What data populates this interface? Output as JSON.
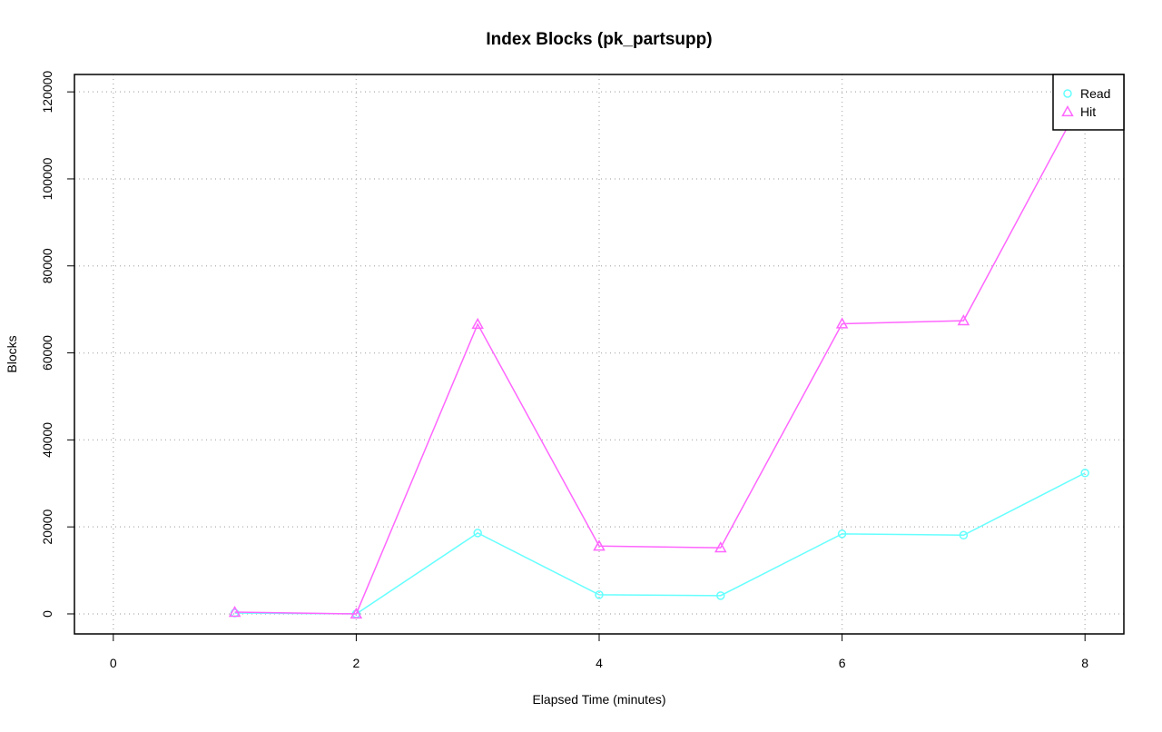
{
  "chart_data": {
    "type": "line",
    "title": "Index Blocks (pk_partsupp)",
    "x_label": "Elapsed Time (minutes)",
    "y_label": "Blocks",
    "x": [
      1,
      2,
      3,
      4,
      5,
      6,
      7,
      8
    ],
    "series": [
      {
        "name": "Read",
        "color": "#66ffff",
        "marker": "circle",
        "values": [
          200,
          0,
          18600,
          4400,
          4200,
          18400,
          18100,
          32400
        ]
      },
      {
        "name": "Hit",
        "color": "#ff66ff",
        "marker": "triangle",
        "values": [
          400,
          0,
          66600,
          15600,
          15200,
          66700,
          67400,
          119400
        ]
      }
    ],
    "xlim": [
      -0.32,
      8.32
    ],
    "xticks": [
      0,
      2,
      4,
      6,
      8
    ],
    "ylim": [
      -4600,
      124000
    ],
    "yticks": [
      0,
      20000,
      40000,
      60000,
      80000,
      100000,
      120000
    ],
    "grid": true,
    "legend": "top-right"
  }
}
